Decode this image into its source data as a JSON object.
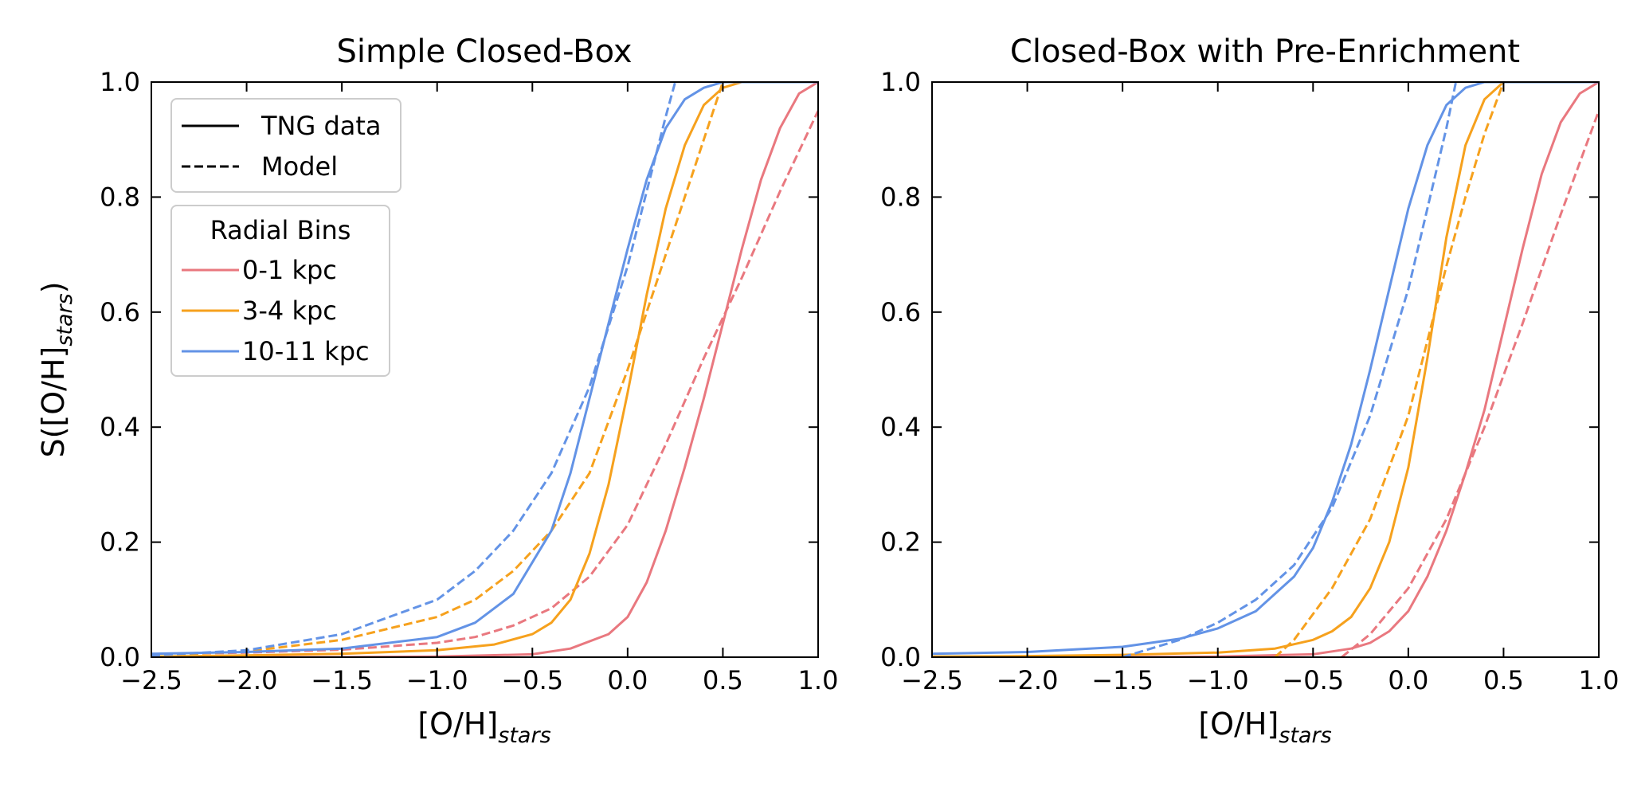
{
  "figure": {
    "ylabel_main": "S([O/H]",
    "ylabel_sub": "stars",
    "ylabel_close": ")",
    "xlabel_main": "[O/H]",
    "xlabel_sub": "stars"
  },
  "legend_style": {
    "solid_label": "TNG data",
    "dashed_label": "Model"
  },
  "legend_bins": {
    "title": "Radial Bins",
    "items": [
      {
        "label": "0-1 kpc",
        "color": "#E9787F"
      },
      {
        "label": "3-4 kpc",
        "color": "#F6A11D"
      },
      {
        "label": "10-11 kpc",
        "color": "#6393E6"
      }
    ]
  },
  "chart_data": [
    {
      "type": "line",
      "title": "Simple Closed-Box",
      "xlim": [
        -2.5,
        1.0
      ],
      "ylim": [
        0.0,
        1.0
      ],
      "xticks": [
        -2.5,
        -2.0,
        -1.5,
        -1.0,
        -0.5,
        0.0,
        0.5,
        1.0
      ],
      "xtick_labels": [
        "−2.5",
        "−2.0",
        "−1.5",
        "−1.0",
        "−0.5",
        "0.0",
        "0.5",
        "1.0"
      ],
      "yticks": [
        0.0,
        0.2,
        0.4,
        0.6,
        0.8,
        1.0
      ],
      "ytick_labels": [
        "0.0",
        "0.2",
        "0.4",
        "0.6",
        "0.8",
        "1.0"
      ],
      "grid": false,
      "series": [
        {
          "name": "0-1 kpc",
          "style": "solid",
          "color": "#E9787F",
          "x": [
            -2.5,
            -1.5,
            -1.0,
            -0.5,
            -0.3,
            -0.1,
            0.0,
            0.1,
            0.2,
            0.3,
            0.4,
            0.5,
            0.6,
            0.7,
            0.8,
            0.9,
            1.0
          ],
          "y": [
            0.0,
            0.0,
            0.001,
            0.005,
            0.015,
            0.04,
            0.07,
            0.13,
            0.22,
            0.33,
            0.45,
            0.58,
            0.71,
            0.83,
            0.92,
            0.98,
            1.0
          ]
        },
        {
          "name": "0-1 kpc",
          "style": "dashed",
          "color": "#E9787F",
          "x": [
            -2.5,
            -2.0,
            -1.5,
            -1.0,
            -0.8,
            -0.6,
            -0.4,
            -0.2,
            0.0,
            0.2,
            0.4,
            0.6,
            0.8,
            1.0
          ],
          "y": [
            0.005,
            0.008,
            0.013,
            0.025,
            0.035,
            0.055,
            0.085,
            0.14,
            0.23,
            0.37,
            0.52,
            0.66,
            0.81,
            0.95
          ]
        },
        {
          "name": "3-4 kpc",
          "style": "solid",
          "color": "#F6A11D",
          "x": [
            -2.5,
            -2.0,
            -1.5,
            -1.0,
            -0.7,
            -0.5,
            -0.4,
            -0.3,
            -0.2,
            -0.1,
            0.0,
            0.1,
            0.2,
            0.3,
            0.4,
            0.5,
            0.6,
            0.7,
            0.8,
            1.0
          ],
          "y": [
            0.001,
            0.003,
            0.006,
            0.012,
            0.022,
            0.04,
            0.06,
            0.1,
            0.18,
            0.3,
            0.46,
            0.63,
            0.78,
            0.89,
            0.96,
            0.99,
            1.0,
            1.0,
            1.0,
            1.0
          ]
        },
        {
          "name": "3-4 kpc",
          "style": "dashed",
          "color": "#F6A11D",
          "x": [
            -2.5,
            -2.0,
            -1.5,
            -1.0,
            -0.8,
            -0.6,
            -0.4,
            -0.2,
            0.0,
            0.1,
            0.2,
            0.3,
            0.4,
            0.5
          ],
          "y": [
            0.003,
            0.01,
            0.03,
            0.07,
            0.1,
            0.15,
            0.22,
            0.32,
            0.5,
            0.6,
            0.7,
            0.8,
            0.9,
            1.0
          ]
        },
        {
          "name": "10-11 kpc",
          "style": "solid",
          "color": "#6393E6",
          "x": [
            -2.5,
            -2.0,
            -1.5,
            -1.0,
            -0.8,
            -0.6,
            -0.4,
            -0.3,
            -0.2,
            -0.1,
            0.0,
            0.1,
            0.2,
            0.3,
            0.4,
            0.5,
            0.7,
            1.0
          ],
          "y": [
            0.006,
            0.009,
            0.015,
            0.035,
            0.06,
            0.11,
            0.22,
            0.32,
            0.45,
            0.58,
            0.71,
            0.83,
            0.92,
            0.97,
            0.99,
            1.0,
            1.0,
            1.0
          ]
        },
        {
          "name": "10-11 kpc",
          "style": "dashed",
          "color": "#6393E6",
          "x": [
            -2.5,
            -2.0,
            -1.5,
            -1.0,
            -0.8,
            -0.6,
            -0.4,
            -0.2,
            0.0,
            0.1,
            0.2,
            0.25
          ],
          "y": [
            0.003,
            0.012,
            0.04,
            0.1,
            0.15,
            0.22,
            0.32,
            0.47,
            0.68,
            0.81,
            0.94,
            1.0
          ]
        }
      ]
    },
    {
      "type": "line",
      "title": "Closed-Box with Pre-Enrichment",
      "xlim": [
        -2.5,
        1.0
      ],
      "ylim": [
        0.0,
        1.0
      ],
      "xticks": [
        -2.5,
        -2.0,
        -1.5,
        -1.0,
        -0.5,
        0.0,
        0.5,
        1.0
      ],
      "xtick_labels": [
        "−2.5",
        "−2.0",
        "−1.5",
        "−1.0",
        "−0.5",
        "0.0",
        "0.5",
        "1.0"
      ],
      "yticks": [
        0.0,
        0.2,
        0.4,
        0.6,
        0.8,
        1.0
      ],
      "ytick_labels": [
        "0.0",
        "0.2",
        "0.4",
        "0.6",
        "0.8",
        "1.0"
      ],
      "grid": false,
      "series": [
        {
          "name": "0-1 kpc",
          "style": "solid",
          "color": "#E9787F",
          "x": [
            -2.5,
            -1.5,
            -1.0,
            -0.5,
            -0.3,
            -0.2,
            -0.1,
            0.0,
            0.1,
            0.2,
            0.3,
            0.4,
            0.5,
            0.6,
            0.7,
            0.8,
            0.9,
            1.0
          ],
          "y": [
            0.0,
            0.0,
            0.001,
            0.005,
            0.015,
            0.025,
            0.045,
            0.08,
            0.14,
            0.22,
            0.32,
            0.43,
            0.57,
            0.71,
            0.84,
            0.93,
            0.98,
            1.0
          ]
        },
        {
          "name": "0-1 kpc",
          "style": "dashed",
          "color": "#E9787F",
          "x": [
            -0.35,
            -0.2,
            0.0,
            0.2,
            0.4,
            0.6,
            0.8,
            1.0
          ],
          "y": [
            0.0,
            0.04,
            0.12,
            0.24,
            0.4,
            0.58,
            0.77,
            0.95
          ]
        },
        {
          "name": "3-4 kpc",
          "style": "solid",
          "color": "#F6A11D",
          "x": [
            -2.5,
            -2.0,
            -1.5,
            -1.0,
            -0.7,
            -0.5,
            -0.4,
            -0.3,
            -0.2,
            -0.1,
            0.0,
            0.1,
            0.2,
            0.3,
            0.4,
            0.5,
            0.6,
            1.0
          ],
          "y": [
            0.001,
            0.002,
            0.004,
            0.008,
            0.015,
            0.03,
            0.045,
            0.07,
            0.12,
            0.2,
            0.33,
            0.52,
            0.73,
            0.89,
            0.97,
            1.0,
            1.0,
            1.0
          ]
        },
        {
          "name": "3-4 kpc",
          "style": "dashed",
          "color": "#F6A11D",
          "x": [
            -0.7,
            -0.6,
            -0.4,
            -0.2,
            0.0,
            0.1,
            0.2,
            0.3,
            0.4,
            0.5
          ],
          "y": [
            0.0,
            0.03,
            0.12,
            0.24,
            0.42,
            0.55,
            0.68,
            0.8,
            0.91,
            1.0
          ]
        },
        {
          "name": "10-11 kpc",
          "style": "solid",
          "color": "#6393E6",
          "x": [
            -2.5,
            -2.0,
            -1.5,
            -1.2,
            -1.0,
            -0.8,
            -0.6,
            -0.5,
            -0.4,
            -0.3,
            -0.2,
            -0.1,
            0.0,
            0.1,
            0.2,
            0.3,
            0.4,
            0.5,
            1.0
          ],
          "y": [
            0.006,
            0.009,
            0.018,
            0.032,
            0.05,
            0.08,
            0.14,
            0.19,
            0.27,
            0.37,
            0.5,
            0.64,
            0.78,
            0.89,
            0.96,
            0.99,
            1.0,
            1.0,
            1.0
          ]
        },
        {
          "name": "10-11 kpc",
          "style": "dashed",
          "color": "#6393E6",
          "x": [
            -1.5,
            -1.2,
            -1.0,
            -0.8,
            -0.6,
            -0.4,
            -0.2,
            0.0,
            0.1,
            0.2,
            0.25
          ],
          "y": [
            0.0,
            0.03,
            0.06,
            0.1,
            0.16,
            0.26,
            0.42,
            0.64,
            0.78,
            0.92,
            1.0
          ]
        }
      ]
    }
  ]
}
